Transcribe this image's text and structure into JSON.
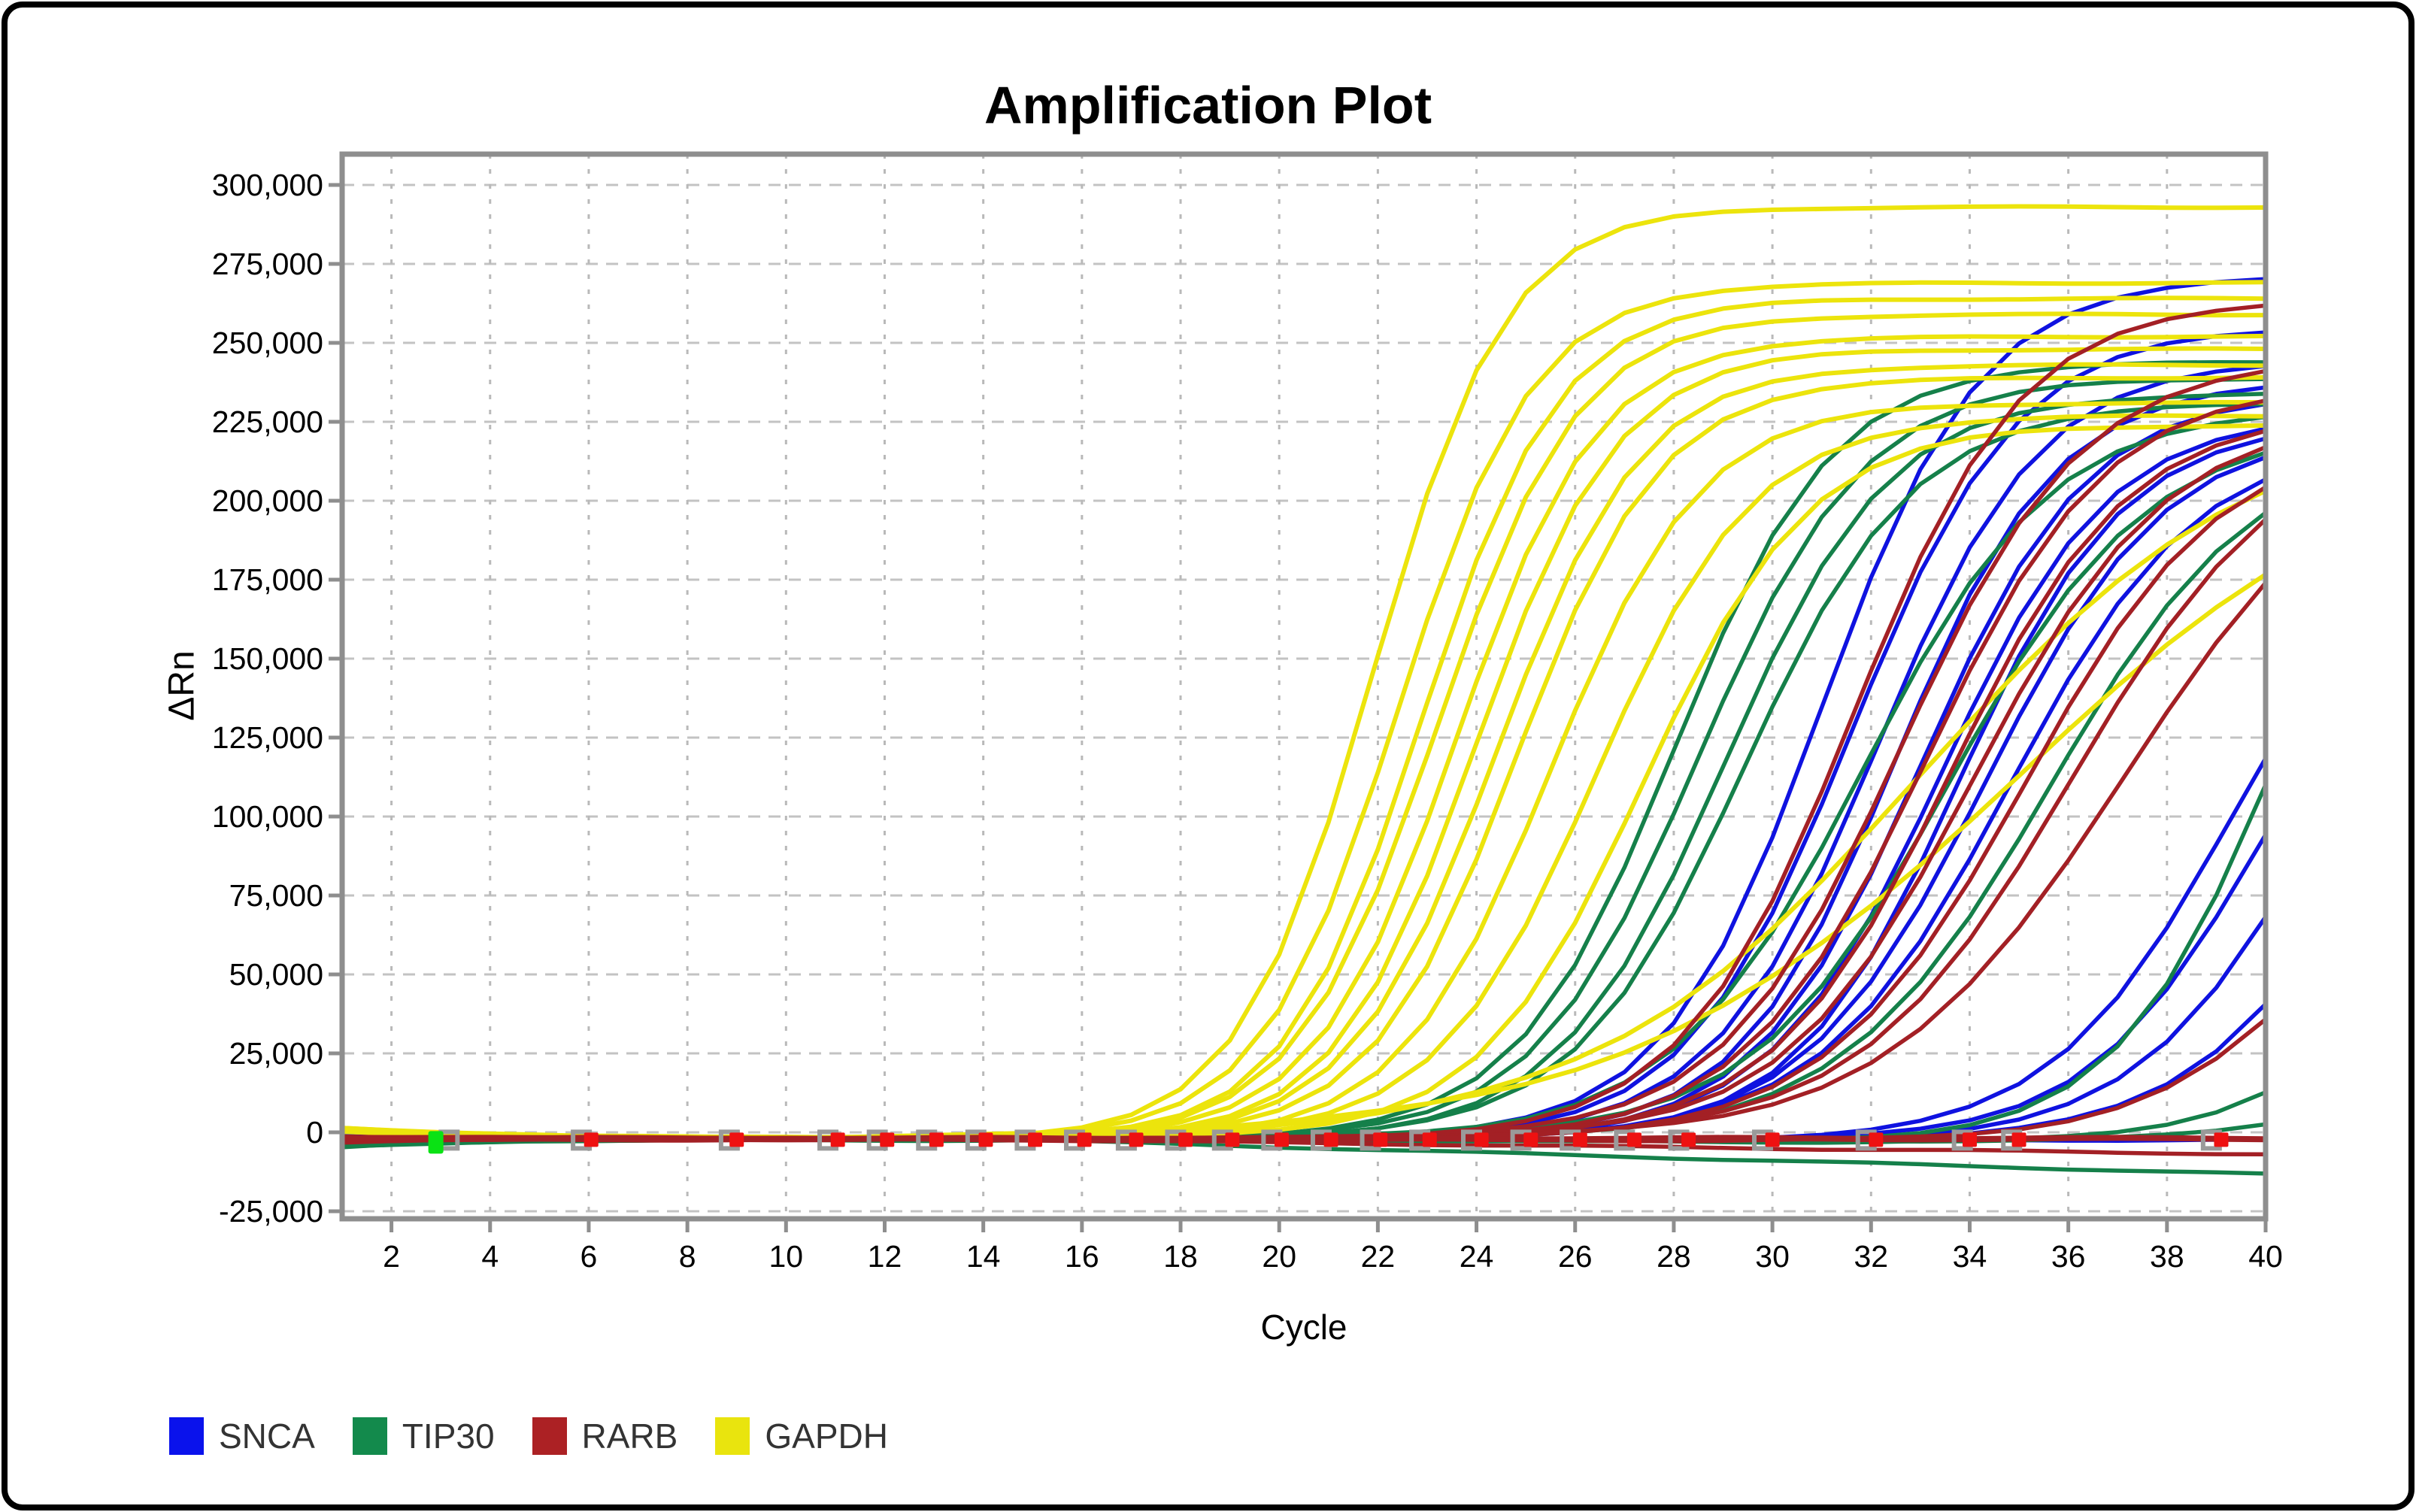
{
  "title": "Amplification Plot",
  "axes": {
    "x": {
      "label": "Cycle",
      "min": 1,
      "max": 40
    },
    "y": {
      "label": "ΔRn",
      "min": -26700,
      "max": 309800,
      "grid_step": 25000
    }
  },
  "legend": {
    "items": [
      {
        "label": "SNCA",
        "color": "#0a12ec"
      },
      {
        "label": "TIP30",
        "color": "#138a4c"
      },
      {
        "label": "RARB",
        "color": "#ac2124"
      },
      {
        "label": "GAPDH",
        "color": "#e9e40e"
      }
    ]
  },
  "chart_data": {
    "type": "line",
    "title": "Amplification Plot",
    "xlabel": "Cycle",
    "ylabel": "ΔRn",
    "x_range": [
      1,
      40
    ],
    "y_range": [
      -26700,
      309800
    ],
    "grid": true,
    "legend_position": "bottom-left",
    "x_ticks": [
      {
        "v": 2,
        "label": "2"
      },
      {
        "v": 4,
        "label": "4"
      },
      {
        "v": 6,
        "label": "6"
      },
      {
        "v": 8,
        "label": "8"
      },
      {
        "v": 10,
        "label": "10"
      },
      {
        "v": 12,
        "label": "12"
      },
      {
        "v": 14,
        "label": "14"
      },
      {
        "v": 16,
        "label": "16"
      },
      {
        "v": 18,
        "label": "18"
      },
      {
        "v": 20,
        "label": "20"
      },
      {
        "v": 22,
        "label": "22"
      },
      {
        "v": 24,
        "label": "24"
      },
      {
        "v": 26,
        "label": "26"
      },
      {
        "v": 28,
        "label": "28"
      },
      {
        "v": 30,
        "label": "30"
      },
      {
        "v": 32,
        "label": "32"
      },
      {
        "v": 34,
        "label": "34"
      },
      {
        "v": 36,
        "label": "36"
      },
      {
        "v": 38,
        "label": "38"
      },
      {
        "v": 40,
        "label": "40"
      }
    ],
    "y_ticks": [
      {
        "v": 300000,
        "label": "300,000"
      },
      {
        "v": 275000,
        "label": "275,000"
      },
      {
        "v": 250000,
        "label": "250,000"
      },
      {
        "v": 225000,
        "label": "225,000"
      },
      {
        "v": 200000,
        "label": "200,000"
      },
      {
        "v": 175000,
        "label": "175,000"
      },
      {
        "v": 150000,
        "label": "150,000"
      },
      {
        "v": 125000,
        "label": "125,000"
      },
      {
        "v": 100000,
        "label": "100,000"
      },
      {
        "v": 75000,
        "label": "75,000"
      },
      {
        "v": 50000,
        "label": "50,000"
      },
      {
        "v": 25000,
        "label": "25,000"
      },
      {
        "v": 0,
        "label": "0"
      },
      {
        "v": -25000,
        "label": "-25,000"
      }
    ],
    "model": "sigmoid: value(t) = baseline(start→end) + plateau / (1 + exp(-k*(t-ct)))",
    "groups": {
      "SNCA": {
        "color": "#0f12e0",
        "lw": 5.5
      },
      "TIP30": {
        "color": "#15804a",
        "lw": 5.5
      },
      "GAPDH": {
        "color": "#ece40c",
        "lw": 6
      },
      "RARB": {
        "color": "#a32025",
        "lw": 5.5
      }
    },
    "series": [
      {
        "target": "SNCA",
        "ct": 31.0,
        "k": 0.62,
        "plateau": 273000,
        "start": -300
      },
      {
        "target": "SNCA",
        "ct": 31.6,
        "k": 0.6,
        "plateau": 257000,
        "start": -900
      },
      {
        "target": "SNCA",
        "ct": 32.1,
        "k": 0.6,
        "plateau": 247000,
        "start": -1500
      },
      {
        "target": "SNCA",
        "ct": 32.5,
        "k": 0.62,
        "plateau": 240000,
        "start": -600
      },
      {
        "target": "SNCA",
        "ct": 33.0,
        "k": 0.6,
        "plateau": 236000,
        "start": -2000
      },
      {
        "target": "SNCA",
        "ct": 33.4,
        "k": 0.58,
        "plateau": 230000,
        "start": -1100
      },
      {
        "target": "SNCA",
        "ct": 33.8,
        "k": 0.6,
        "plateau": 227000,
        "start": -2400
      },
      {
        "target": "SNCA",
        "ct": 34.3,
        "k": 0.55,
        "plateau": 225000,
        "start": -1700
      },
      {
        "target": "SNCA",
        "ct": 34.8,
        "k": 0.52,
        "plateau": 223000,
        "start": -2600
      },
      {
        "target": "SNCA",
        "ct": 39.2,
        "k": 0.55,
        "plateau": 200000,
        "start": -800,
        "drift": -1200
      },
      {
        "target": "SNCA",
        "ct": 40.0,
        "k": 0.55,
        "plateau": 195000,
        "start": -1900,
        "drift": -1500
      },
      {
        "target": "SNCA",
        "ct": 41.0,
        "k": 0.55,
        "plateau": 195000,
        "start": -2600,
        "drift": -1000
      },
      {
        "target": "SNCA",
        "ct": 42.5,
        "k": 0.5,
        "plateau": 200000,
        "start": -1300,
        "drift": -1800
      },
      {
        "target": "SNCA",
        "ct": 60,
        "k": 0.5,
        "plateau": 0,
        "start": -2200,
        "drift": -500
      },
      {
        "target": "TIP30",
        "ct": 28.0,
        "k": 0.62,
        "plateau": 246000,
        "start": -2800
      },
      {
        "target": "TIP30",
        "ct": 28.5,
        "k": 0.6,
        "plateau": 241000,
        "start": -3600
      },
      {
        "target": "TIP30",
        "ct": 29.0,
        "k": 0.6,
        "plateau": 236000,
        "start": -2500
      },
      {
        "target": "TIP30",
        "ct": 29.4,
        "k": 0.58,
        "plateau": 233000,
        "start": -4300
      },
      {
        "target": "TIP30",
        "ct": 31.8,
        "k": 0.52,
        "plateau": 232000,
        "start": -3100
      },
      {
        "target": "TIP30",
        "ct": 33.6,
        "k": 0.5,
        "plateau": 226000,
        "start": -4700
      },
      {
        "target": "TIP30",
        "ct": 35.6,
        "k": 0.48,
        "plateau": 222000,
        "start": -3900
      },
      {
        "target": "TIP30",
        "ct": 40.3,
        "k": 0.6,
        "plateau": 250000,
        "start": -2200,
        "drift": -1500
      },
      {
        "target": "TIP30",
        "ct": 45.0,
        "k": 0.5,
        "plateau": 220000,
        "start": -3300,
        "drift": -2000
      },
      {
        "target": "TIP30",
        "ct": 60,
        "k": 0.5,
        "plateau": 0,
        "start": -3000,
        "end": -2500,
        "drift": -10800
      },
      {
        "target": "TIP30",
        "ct": 47.0,
        "k": 0.5,
        "plateau": 200000,
        "start": -4500,
        "drift": -1200
      },
      {
        "target": "GAPDH",
        "ct": 21.9,
        "k": 0.74,
        "plateau": 295000,
        "start": 1500
      },
      {
        "target": "GAPDH",
        "ct": 22.4,
        "k": 0.72,
        "plateau": 271000,
        "start": 1200
      },
      {
        "target": "GAPDH",
        "ct": 22.9,
        "k": 0.72,
        "plateau": 266000,
        "start": 1000
      },
      {
        "target": "GAPDH",
        "ct": 23.2,
        "k": 0.7,
        "plateau": 261000,
        "start": 700
      },
      {
        "target": "GAPDH",
        "ct": 23.6,
        "k": 0.7,
        "plateau": 254000,
        "start": 1300
      },
      {
        "target": "GAPDH",
        "ct": 24.0,
        "k": 0.7,
        "plateau": 250000,
        "start": 500
      },
      {
        "target": "GAPDH",
        "ct": 24.4,
        "k": 0.68,
        "plateau": 245000,
        "start": 900
      },
      {
        "target": "GAPDH",
        "ct": 24.8,
        "k": 0.68,
        "plateau": 241000,
        "start": 200
      },
      {
        "target": "GAPDH",
        "ct": 25.5,
        "k": 0.66,
        "plateau": 233000,
        "start": 1100
      },
      {
        "target": "GAPDH",
        "ct": 26.4,
        "k": 0.62,
        "plateau": 229000,
        "start": 400
      },
      {
        "target": "GAPDH",
        "ct": 27.4,
        "k": 0.6,
        "plateau": 226000,
        "start": 800
      },
      {
        "target": "GAPDH",
        "ct": 33.0,
        "k": 0.3,
        "plateau": 230000,
        "start": 300
      },
      {
        "target": "GAPDH",
        "ct": 35.0,
        "k": 0.25,
        "plateau": 230000,
        "start": 600
      },
      {
        "target": "RARB",
        "ct": 31.6,
        "k": 0.58,
        "plateau": 266000,
        "start": -1200
      },
      {
        "target": "RARB",
        "ct": 32.6,
        "k": 0.55,
        "plateau": 247000,
        "start": -2000
      },
      {
        "target": "RARB",
        "ct": 33.1,
        "k": 0.55,
        "plateau": 239000,
        "start": -1500
      },
      {
        "target": "RARB",
        "ct": 33.6,
        "k": 0.55,
        "plateau": 231000,
        "start": -2800
      },
      {
        "target": "RARB",
        "ct": 34.1,
        "k": 0.52,
        "plateau": 229000,
        "start": -1800
      },
      {
        "target": "RARB",
        "ct": 35.1,
        "k": 0.5,
        "plateau": 224000,
        "start": -2400
      },
      {
        "target": "RARB",
        "ct": 36.1,
        "k": 0.46,
        "plateau": 229000,
        "start": -1400
      },
      {
        "target": "RARB",
        "ct": 37.1,
        "k": 0.42,
        "plateau": 228000,
        "start": -3200
      },
      {
        "target": "RARB",
        "ct": 42.0,
        "k": 0.5,
        "plateau": 145000,
        "start": -1600,
        "drift": -1400
      },
      {
        "target": "RARB",
        "ct": 60,
        "k": 0.5,
        "plateau": 0,
        "start": -2000,
        "end": -2000,
        "lw": 8
      },
      {
        "target": "RARB",
        "ct": 60,
        "k": 0.5,
        "plateau": 0,
        "start": -2300,
        "end": -2400,
        "drift": -4500
      }
    ],
    "markers": {
      "baseline_value": -2000,
      "gray_square_cycles": [
        3.17,
        5.85,
        8.85,
        10.85,
        11.85,
        12.85,
        13.85,
        14.85,
        15.85,
        16.9,
        17.9,
        18.85,
        19.85,
        20.85,
        21.85,
        22.85,
        23.9,
        24.9,
        25.9,
        27.0,
        28.1,
        29.8,
        31.9,
        33.85,
        34.85,
        38.9
      ],
      "red_flag_cycles": [
        6.05,
        9.0,
        11.05,
        12.05,
        13.05,
        14.05,
        15.05,
        16.05,
        17.1,
        18.1,
        19.05,
        20.05,
        21.05,
        22.05,
        23.05,
        24.1,
        25.1,
        26.1,
        27.2,
        28.3,
        30.0,
        32.1,
        34.0,
        35.0,
        39.1
      ],
      "green_flag_cycle": 2.9,
      "gray_color": "#9a9a9a",
      "red_color": "#ee1111",
      "green_color": "#0ae214"
    },
    "style": {
      "plot_border_color": "#8e8e8e",
      "grid_color": "#c3c3c3",
      "tick_label_color": "#000000",
      "background": "#ffffff"
    }
  }
}
